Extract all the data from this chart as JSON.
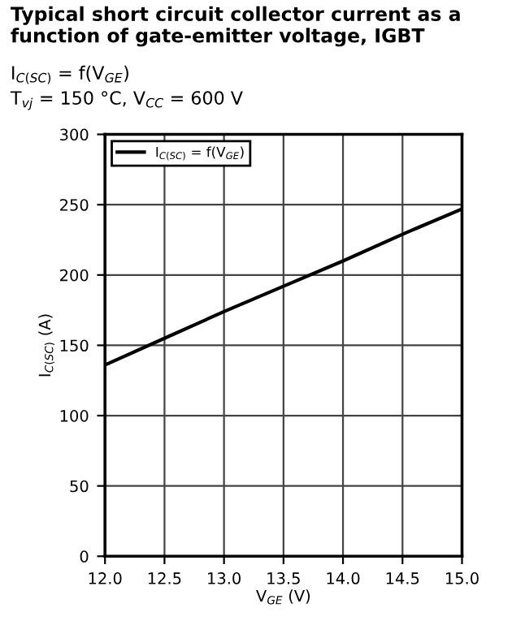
{
  "chart_data": {
    "type": "line",
    "title": "Typical short circuit collector current as a function of gate-emitter voltage, IGBT",
    "subtitle": "I$_{C(SC)}$ = f(V$_{GE}$)\nT$_{vj}$ = 150 °C, V$_{CC}$ = 600 V",
    "xlabel": "V$_{GE}$ (V)",
    "ylabel": "I$_{C(SC)}$ (A)",
    "series": [
      {
        "name": "I$_{C(SC)}$ = f(V$_{GE}$)",
        "color": "#000000",
        "x": [
          12.0,
          12.5,
          13.0,
          13.5,
          14.0,
          14.5,
          15.0
        ],
        "values": [
          136,
          155,
          174,
          192,
          210,
          229,
          247
        ]
      }
    ],
    "xlim": [
      12.0,
      15.0
    ],
    "xticks": [
      {
        "value": 12.0,
        "label": "12.0"
      },
      {
        "value": 12.5,
        "label": "12.5"
      },
      {
        "value": 13.0,
        "label": "13.0"
      },
      {
        "value": 13.5,
        "label": "13.5"
      },
      {
        "value": 14.0,
        "label": "14.0"
      },
      {
        "value": 14.5,
        "label": "14.5"
      },
      {
        "value": 15.0,
        "label": "15.0"
      }
    ],
    "ylim": [
      0,
      300
    ],
    "yticks": [
      0,
      50,
      100,
      150,
      200,
      250,
      300
    ],
    "grid": true,
    "legend": "top left",
    "line_style": "solid"
  }
}
